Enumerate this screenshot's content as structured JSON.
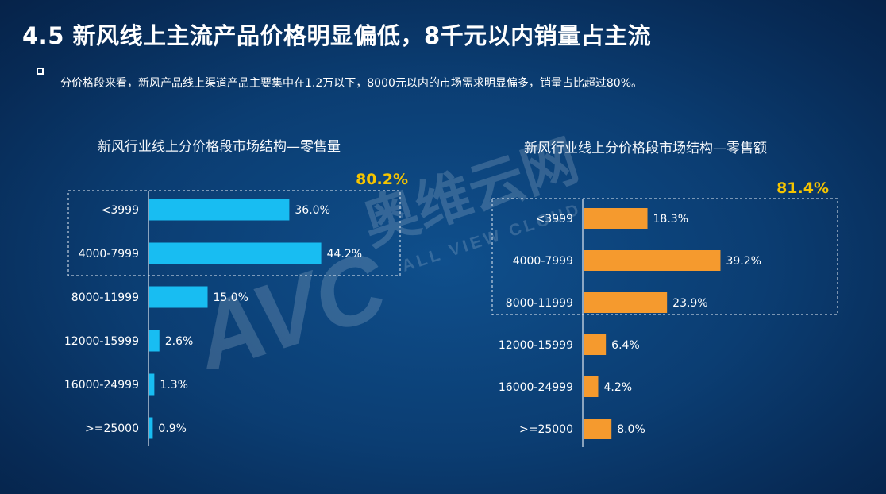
{
  "page": {
    "title": "4.5 新风线上主流产品价格明显偏低，8千元以内销量占主流",
    "subtitle": "分价格段来看，新风产品线上渠道产品主要集中在1.2万以下，8000元以内的市场需求明显偏多，销量占比超过80%。"
  },
  "watermark": {
    "logo": "AVC",
    "brand": "奥维云网",
    "brand_en": "ALL VIEW CLOUD"
  },
  "colors": {
    "left_bar": "#18bdf2",
    "right_bar": "#f59a2e",
    "highlight_text": "#f5c400",
    "axis": "#dfe7f0"
  },
  "chart_data": [
    {
      "type": "bar",
      "orientation": "horizontal",
      "title": "新风行业线上分价格段市场结构—零售量",
      "categories": [
        "<3999",
        "4000-7999",
        "8000-11999",
        "12000-15999",
        "16000-24999",
        ">=25000"
      ],
      "values": [
        36.0,
        44.2,
        15.0,
        2.6,
        1.3,
        0.9
      ],
      "value_labels": [
        "36.0%",
        "44.2%",
        "15.0%",
        "2.6%",
        "1.3%",
        "0.9%"
      ],
      "xlim": [
        0,
        100
      ],
      "highlight": {
        "categories": [
          "<3999",
          "4000-7999"
        ],
        "label": "80.2%"
      },
      "grid": false
    },
    {
      "type": "bar",
      "orientation": "horizontal",
      "title": "新风行业线上分价格段市场结构—零售额",
      "categories": [
        "<3999",
        "4000-7999",
        "8000-11999",
        "12000-15999",
        "16000-24999",
        ">=25000"
      ],
      "values": [
        18.3,
        39.2,
        23.9,
        6.4,
        4.2,
        8.0
      ],
      "value_labels": [
        "18.3%",
        "39.2%",
        "23.9%",
        "6.4%",
        "4.2%",
        "8.0%"
      ],
      "xlim": [
        0,
        100
      ],
      "highlight": {
        "categories": [
          "<3999",
          "4000-7999",
          "8000-11999"
        ],
        "label": "81.4%"
      },
      "grid": false
    }
  ]
}
